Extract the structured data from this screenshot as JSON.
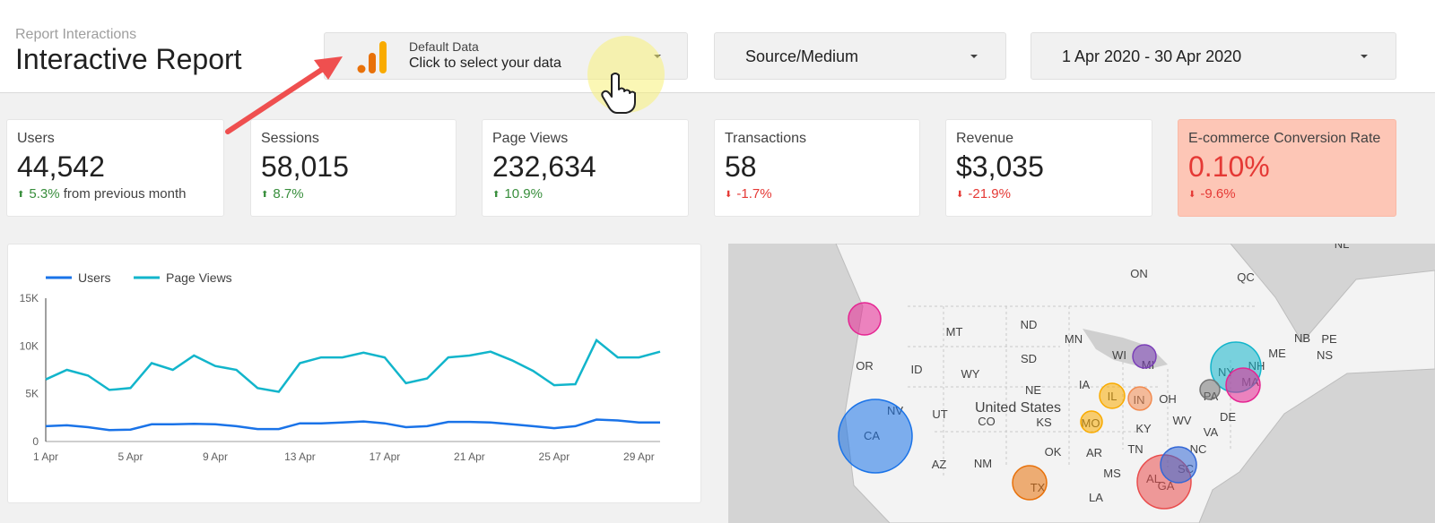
{
  "header": {
    "subtitle": "Report Interactions",
    "title": "Interactive Report"
  },
  "data_source": {
    "name": "Default Data",
    "hint": "Click to select your data"
  },
  "dimension_control": {
    "label": "Source/Medium"
  },
  "date_range": {
    "label": "1 Apr 2020 - 30 Apr 2020"
  },
  "scorecards": [
    {
      "label": "Users",
      "value": "44,542",
      "delta": "5.3%",
      "delta_suffix": "from previous month",
      "trend": "up"
    },
    {
      "label": "Sessions",
      "value": "58,015",
      "delta": "8.7%",
      "delta_suffix": "",
      "trend": "up"
    },
    {
      "label": "Page Views",
      "value": "232,634",
      "delta": "10.9%",
      "delta_suffix": "",
      "trend": "up"
    },
    {
      "label": "Transactions",
      "value": "58",
      "delta": "-1.7%",
      "delta_suffix": "",
      "trend": "down"
    },
    {
      "label": "Revenue",
      "value": "$3,035",
      "delta": "-21.9%",
      "delta_suffix": "",
      "trend": "down"
    },
    {
      "label": "E-commerce Conversion Rate",
      "value": "0.10%",
      "delta": "-9.6%",
      "delta_suffix": "",
      "trend": "down"
    }
  ],
  "colors": {
    "users_series": "#1a73e8",
    "pageviews_series": "#12b5cb",
    "positive": "#388e3c",
    "negative": "#e53935",
    "alert_card": "#fdc6b6"
  },
  "chart_data": {
    "type": "line",
    "x": [
      "1 Apr",
      "2 Apr",
      "3 Apr",
      "4 Apr",
      "5 Apr",
      "6 Apr",
      "7 Apr",
      "8 Apr",
      "9 Apr",
      "10 Apr",
      "11 Apr",
      "12 Apr",
      "13 Apr",
      "14 Apr",
      "15 Apr",
      "16 Apr",
      "17 Apr",
      "18 Apr",
      "19 Apr",
      "20 Apr",
      "21 Apr",
      "22 Apr",
      "23 Apr",
      "24 Apr",
      "25 Apr",
      "26 Apr",
      "27 Apr",
      "28 Apr",
      "29 Apr",
      "30 Apr"
    ],
    "x_ticks": [
      "1 Apr",
      "5 Apr",
      "9 Apr",
      "13 Apr",
      "17 Apr",
      "21 Apr",
      "25 Apr",
      "29 Apr"
    ],
    "y_ticks": [
      "0",
      "5K",
      "10K",
      "15K"
    ],
    "ylim": [
      0,
      15000
    ],
    "legend": "top-left",
    "series": [
      {
        "name": "Users",
        "values": [
          1600,
          1700,
          1500,
          1200,
          1250,
          1800,
          1800,
          1850,
          1800,
          1600,
          1300,
          1300,
          1900,
          1900,
          2000,
          2100,
          1900,
          1500,
          1600,
          2050,
          2050,
          2000,
          1800,
          1600,
          1400,
          1600,
          2300,
          2200,
          2000,
          2000
        ]
      },
      {
        "name": "Page Views",
        "values": [
          6500,
          7500,
          6900,
          5400,
          5600,
          8200,
          7500,
          9000,
          7900,
          7500,
          5600,
          5200,
          8200,
          8800,
          8800,
          9300,
          8800,
          6100,
          6600,
          8800,
          9000,
          9400,
          8500,
          7400,
          5900,
          6000,
          10600,
          8800,
          8800,
          9400
        ]
      }
    ]
  },
  "map": {
    "country_label": "United States",
    "region_labels": [
      "MT",
      "ND",
      "MN",
      "SD",
      "WY",
      "ID",
      "OR",
      "NE",
      "KS",
      "OK",
      "TX",
      "NM",
      "NV",
      "UT",
      "CO",
      "CA",
      "AZ",
      "WI",
      "MI",
      "IL",
      "IN",
      "OH",
      "KY",
      "TN",
      "MS",
      "AL",
      "GA",
      "SC",
      "NC",
      "VA",
      "WV",
      "PA",
      "NY",
      "MA",
      "NH",
      "ME",
      "NB",
      "NS",
      "PE",
      "QC",
      "ON",
      "NL",
      "MO",
      "AR",
      "LA",
      "DE",
      "IA"
    ],
    "bubbles": [
      {
        "state": "CA",
        "size": "large",
        "color": "#1a73e8"
      },
      {
        "state": "WA",
        "size": "small",
        "color": "#e52592"
      },
      {
        "state": "TX",
        "size": "small",
        "color": "#e8710a"
      },
      {
        "state": "GA",
        "size": "large",
        "color": "#e94d4d"
      },
      {
        "state": "SC",
        "size": "small",
        "color": "#3367d6"
      },
      {
        "state": "NY",
        "size": "large",
        "color": "#12b5cb"
      },
      {
        "state": "MA",
        "size": "small",
        "color": "#e52592"
      },
      {
        "state": "MI",
        "size": "small",
        "color": "#7b3fb8"
      },
      {
        "state": "IL",
        "size": "small",
        "color": "#f9ab00"
      },
      {
        "state": "IN",
        "size": "small",
        "color": "#f28b50"
      },
      {
        "state": "MO",
        "size": "small",
        "color": "#f9ab00"
      },
      {
        "state": "PA",
        "size": "small",
        "color": "#757575"
      }
    ]
  }
}
